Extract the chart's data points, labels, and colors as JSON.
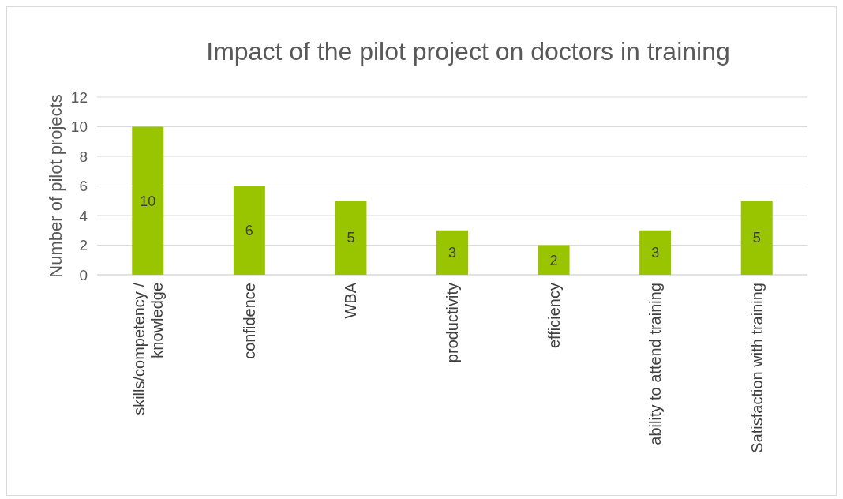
{
  "chart_data": {
    "type": "bar",
    "title": "Impact of the pilot project on doctors in training",
    "ylabel": "Number of pilot projects",
    "categories": [
      "skills/competency / knowledge",
      "confidence",
      "WBA",
      "productivity",
      "efficiency",
      "ability to attend training",
      "Satisfaction with training"
    ],
    "values": [
      10,
      6,
      5,
      3,
      2,
      3,
      5
    ],
    "color": "#99c400",
    "ylim": [
      0,
      12
    ],
    "yticks": [
      0,
      2,
      4,
      6,
      8,
      10,
      12
    ],
    "grid": "y",
    "data_labels": true
  }
}
